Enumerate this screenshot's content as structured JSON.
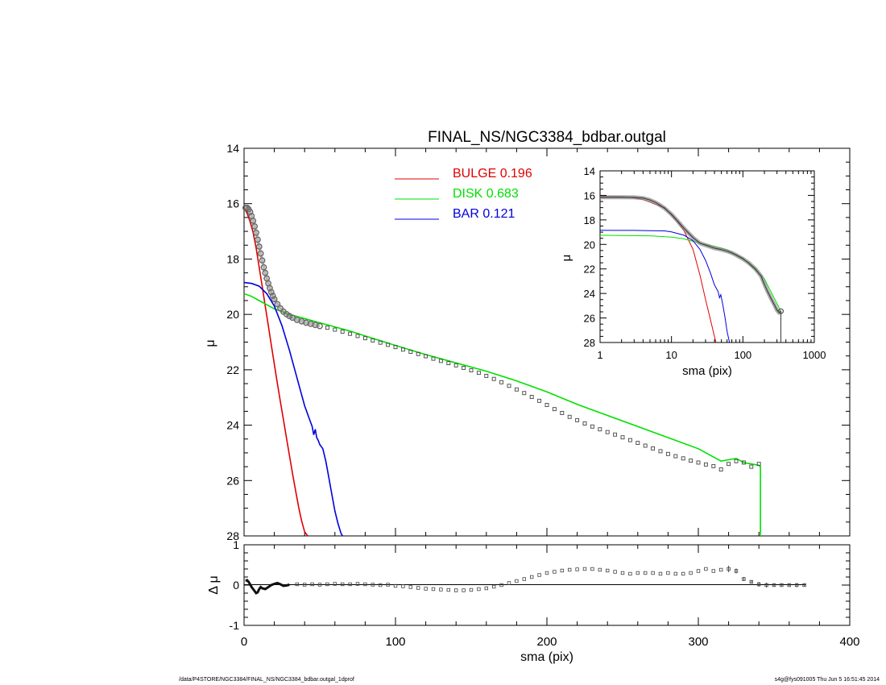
{
  "chart_data": [
    {
      "id": "main",
      "type": "line",
      "title": "FINAL_NS/NGC3384_bdbar.outgal",
      "xlabel": "",
      "ylabel": "μ",
      "xlim": [
        0,
        400
      ],
      "ylim": [
        28,
        14
      ],
      "y_inverted": true,
      "yticks": [
        14,
        16,
        18,
        20,
        22,
        24,
        26,
        28
      ],
      "legend": {
        "position": "top-center",
        "entries": [
          {
            "name": "BULGE",
            "value": "0.196",
            "color": "#e00000"
          },
          {
            "name": "DISK",
            "value": "0.683",
            "color": "#00e000"
          },
          {
            "name": "BAR",
            "value": "0.121",
            "color": "#0000dd"
          }
        ]
      },
      "observed": {
        "x": [
          1,
          2,
          3,
          4,
          5,
          6,
          7,
          8,
          9,
          10,
          11,
          12,
          13,
          14,
          15,
          16,
          17,
          18,
          19,
          20,
          22,
          24,
          26,
          28,
          30,
          32,
          35,
          38,
          41,
          44,
          47,
          50,
          55,
          60,
          65,
          70,
          75,
          80,
          85,
          90,
          95,
          100,
          105,
          110,
          115,
          120,
          125,
          130,
          135,
          140,
          145,
          150,
          155,
          160,
          165,
          170,
          175,
          180,
          185,
          190,
          195,
          200,
          205,
          210,
          215,
          220,
          225,
          230,
          235,
          240,
          245,
          250,
          255,
          260,
          265,
          270,
          275,
          280,
          285,
          290,
          295,
          300,
          305,
          310,
          315,
          320,
          325,
          330,
          335,
          340
        ],
        "y": [
          16.15,
          16.15,
          16.2,
          16.3,
          16.45,
          16.62,
          16.82,
          17.05,
          17.3,
          17.55,
          17.8,
          18.05,
          18.3,
          18.5,
          18.7,
          18.88,
          19.05,
          19.2,
          19.33,
          19.45,
          19.63,
          19.78,
          19.9,
          19.99,
          20.06,
          20.12,
          20.2,
          20.25,
          20.3,
          20.34,
          20.38,
          20.42,
          20.48,
          20.55,
          20.62,
          20.7,
          20.78,
          20.86,
          20.94,
          21.02,
          21.1,
          21.18,
          21.27,
          21.35,
          21.43,
          21.51,
          21.6,
          21.68,
          21.76,
          21.84,
          21.93,
          22.02,
          22.11,
          22.22,
          22.33,
          22.45,
          22.58,
          22.71,
          22.84,
          22.98,
          23.12,
          23.27,
          23.42,
          23.56,
          23.7,
          23.82,
          23.94,
          24.05,
          24.15,
          24.25,
          24.34,
          24.44,
          24.54,
          24.64,
          24.74,
          24.84,
          24.94,
          25.04,
          25.12,
          25.2,
          25.28,
          25.35,
          25.42,
          25.48,
          25.6,
          25.4,
          25.3,
          25.35,
          25.5,
          25.4
        ]
      },
      "series": [
        {
          "name": "BULGE",
          "x": [
            0,
            2,
            4,
            6,
            8,
            10,
            12,
            14,
            16,
            18,
            20,
            22,
            24,
            26,
            28,
            30,
            32,
            34,
            36,
            38,
            40,
            42
          ],
          "y": [
            16.15,
            16.35,
            16.65,
            17.05,
            17.6,
            18.3,
            19.0,
            19.7,
            20.4,
            21.1,
            21.8,
            22.5,
            23.15,
            23.8,
            24.45,
            25.1,
            25.75,
            26.35,
            26.95,
            27.45,
            27.85,
            28.0
          ]
        },
        {
          "name": "DISK",
          "x": [
            0,
            5,
            10,
            15,
            20,
            30,
            40,
            50,
            60,
            70,
            80,
            90,
            100,
            120,
            140,
            160,
            180,
            200,
            220,
            240,
            260,
            280,
            300,
            310,
            315,
            320,
            325,
            330,
            335,
            340,
            341,
            341
          ],
          "y": [
            19.25,
            19.35,
            19.5,
            19.65,
            19.8,
            20.0,
            20.15,
            20.3,
            20.45,
            20.6,
            20.78,
            20.95,
            21.12,
            21.45,
            21.75,
            22.05,
            22.4,
            22.8,
            23.25,
            23.65,
            24.05,
            24.45,
            24.85,
            25.15,
            25.3,
            25.25,
            25.2,
            25.35,
            25.4,
            25.45,
            25.5,
            28.0
          ]
        },
        {
          "name": "BAR",
          "x": [
            0,
            5,
            10,
            15,
            20,
            25,
            30,
            35,
            40,
            43,
            45,
            46,
            47,
            48,
            49,
            50,
            52,
            54,
            56,
            58,
            60,
            62,
            64,
            65
          ],
          "y": [
            18.85,
            18.88,
            18.98,
            19.25,
            19.7,
            20.4,
            21.3,
            22.3,
            23.3,
            23.75,
            24.05,
            24.35,
            24.15,
            24.45,
            24.55,
            24.7,
            24.85,
            25.3,
            25.9,
            26.5,
            27.1,
            27.55,
            27.9,
            28.0
          ]
        }
      ]
    },
    {
      "id": "inset",
      "type": "line",
      "title": "",
      "xlabel": "sma (pix)",
      "ylabel": "μ",
      "x_scale": "log",
      "xlim": [
        1,
        1000
      ],
      "ylim": [
        28,
        14
      ],
      "y_inverted": true,
      "xticks": [
        1,
        10,
        100,
        1000
      ],
      "yticks": [
        14,
        16,
        18,
        20,
        22,
        24,
        26,
        28
      ],
      "observed": {
        "x": [
          1,
          1.5,
          2,
          3,
          4,
          5,
          6,
          7,
          8,
          10,
          12,
          15,
          20,
          25,
          30,
          40,
          50,
          60,
          70,
          80,
          100,
          120,
          150,
          180,
          200,
          220,
          250,
          280,
          300,
          320,
          340
        ],
        "y": [
          16.15,
          16.15,
          16.15,
          16.16,
          16.22,
          16.38,
          16.58,
          16.82,
          17.05,
          17.55,
          18.05,
          18.7,
          19.45,
          19.9,
          20.06,
          20.3,
          20.42,
          20.55,
          20.7,
          20.86,
          21.18,
          21.5,
          22.0,
          22.6,
          23.25,
          23.8,
          24.45,
          25.0,
          25.35,
          25.55,
          25.45
        ]
      },
      "series": [
        {
          "x": [
            1,
            2,
            3,
            4,
            5,
            6,
            8,
            10,
            12,
            15,
            20,
            25,
            30,
            35,
            40,
            42
          ],
          "y": [
            16.1,
            16.12,
            16.2,
            16.35,
            16.55,
            16.75,
            17.0,
            17.6,
            18.1,
            18.9,
            20.4,
            22.5,
            24.5,
            26.1,
            27.5,
            28.0
          ]
        },
        {
          "x": [
            1,
            2,
            5,
            10,
            15,
            20,
            30,
            40,
            60,
            100,
            200,
            340
          ],
          "y": [
            19.25,
            19.27,
            19.3,
            19.4,
            19.55,
            19.75,
            20.0,
            20.15,
            20.45,
            21.12,
            22.8,
            25.45
          ]
        },
        {
          "x": [
            1,
            3,
            5,
            8,
            10,
            15,
            20,
            25,
            30,
            35,
            40,
            45,
            47,
            49,
            52,
            56,
            60,
            65
          ],
          "y": [
            18.85,
            18.86,
            18.88,
            18.9,
            18.98,
            19.25,
            19.7,
            20.4,
            21.3,
            22.3,
            23.3,
            23.85,
            24.35,
            24.1,
            24.85,
            25.9,
            27.1,
            28.0
          ]
        }
      ]
    },
    {
      "id": "residual",
      "type": "scatter",
      "title": "",
      "xlabel": "sma (pix)",
      "ylabel": "Δ μ",
      "xlim": [
        0,
        400
      ],
      "ylim": [
        -1,
        1
      ],
      "xticks": [
        0,
        100,
        200,
        300,
        400
      ],
      "yticks": [
        -1,
        0,
        1
      ],
      "x": [
        1,
        2,
        3,
        4,
        5,
        6,
        7,
        8,
        9,
        10,
        11,
        12,
        14,
        16,
        18,
        20,
        22,
        24,
        26,
        28,
        30,
        35,
        40,
        45,
        50,
        55,
        60,
        65,
        70,
        75,
        80,
        85,
        90,
        95,
        100,
        105,
        110,
        115,
        120,
        125,
        130,
        135,
        140,
        145,
        150,
        155,
        160,
        165,
        170,
        175,
        180,
        185,
        190,
        195,
        200,
        205,
        210,
        215,
        220,
        225,
        230,
        235,
        240,
        245,
        250,
        255,
        260,
        265,
        270,
        275,
        280,
        285,
        290,
        295,
        300,
        305,
        310,
        315,
        320,
        325,
        330,
        335,
        340,
        345,
        350,
        355,
        360,
        365,
        370
      ],
      "y": [
        0.1,
        0.12,
        0.08,
        0.02,
        -0.05,
        -0.1,
        -0.15,
        -0.2,
        -0.18,
        -0.1,
        -0.05,
        -0.08,
        -0.1,
        -0.05,
        0.0,
        0.03,
        0.05,
        0.02,
        -0.02,
        -0.01,
        0.01,
        0.02,
        0.01,
        0.02,
        0.01,
        0.02,
        0.03,
        0.02,
        0.02,
        0.03,
        0.02,
        0.01,
        0.0,
        0.01,
        -0.02,
        -0.03,
        -0.05,
        -0.07,
        -0.09,
        -0.1,
        -0.11,
        -0.12,
        -0.13,
        -0.13,
        -0.12,
        -0.1,
        -0.08,
        -0.04,
        0.0,
        0.05,
        0.1,
        0.15,
        0.2,
        0.25,
        0.3,
        0.33,
        0.36,
        0.38,
        0.39,
        0.4,
        0.4,
        0.38,
        0.36,
        0.33,
        0.3,
        0.28,
        0.3,
        0.3,
        0.3,
        0.28,
        0.3,
        0.28,
        0.28,
        0.3,
        0.35,
        0.4,
        0.35,
        0.38,
        0.4,
        0.35,
        0.15,
        0.08,
        0.02,
        0.0,
        0.0,
        0.0,
        0.0,
        0.0,
        0.0
      ],
      "errors": [
        0,
        0,
        0,
        0,
        0,
        0,
        0,
        0,
        0,
        0,
        0,
        0,
        0,
        0,
        0,
        0,
        0,
        0,
        0,
        0,
        0,
        0,
        0,
        0,
        0,
        0,
        0,
        0,
        0,
        0,
        0,
        0,
        0,
        0,
        0,
        0,
        0,
        0,
        0,
        0,
        0,
        0,
        0,
        0,
        0,
        0,
        0,
        0,
        0,
        0,
        0,
        0,
        0,
        0,
        0,
        0,
        0,
        0,
        0,
        0,
        0,
        0,
        0,
        0,
        0,
        0,
        0,
        0,
        0,
        0,
        0,
        0,
        0,
        0,
        0,
        0,
        0,
        0,
        0.08,
        0.06,
        0.05,
        0.04,
        0.06,
        0.06,
        0.04,
        0.04,
        0.03,
        0.05,
        0.03
      ]
    }
  ],
  "footer": {
    "left": "/data/P4STORE/NGC3384/FINAL_NS/NGC3384_bdbar.outgal_1dprof",
    "right": "s4g@fys091005  Thu Jun  5 16:51:45 2014"
  }
}
